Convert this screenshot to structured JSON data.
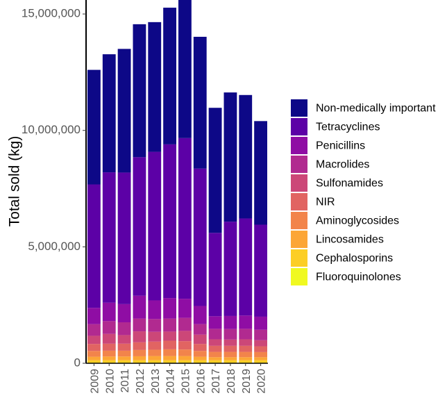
{
  "chart_data": {
    "type": "bar",
    "stacked": true,
    "title": "",
    "xlabel": "",
    "ylabel": "Total sold (kg)",
    "ylim": [
      0,
      15600000
    ],
    "grid": false,
    "legend_position": "right",
    "categories": [
      "2009",
      "2010",
      "2011",
      "2012",
      "2013",
      "2014",
      "2015",
      "2016",
      "2017",
      "2018",
      "2019",
      "2020"
    ],
    "y_ticks": [
      {
        "value": 0,
        "label": "0"
      },
      {
        "value": 5000000,
        "label": "5,000,000"
      },
      {
        "value": 10000000,
        "label": "10,000,000"
      },
      {
        "value": 15000000,
        "label": "15,000,000"
      }
    ],
    "series": [
      {
        "name": "Fluoroquinolones",
        "color": "#f0f921",
        "values": [
          30000,
          30000,
          30000,
          30000,
          30000,
          30000,
          30000,
          30000,
          30000,
          30000,
          30000,
          30000
        ]
      },
      {
        "name": "Cephalosporins",
        "color": "#fcce25",
        "values": [
          100000,
          100000,
          100000,
          100000,
          100000,
          100000,
          100000,
          100000,
          100000,
          100000,
          100000,
          100000
        ]
      },
      {
        "name": "Lincosamides",
        "color": "#fca636",
        "values": [
          150000,
          160000,
          160000,
          170000,
          180000,
          180000,
          180000,
          150000,
          130000,
          130000,
          130000,
          130000
        ]
      },
      {
        "name": "Aminoglycosides",
        "color": "#f2844b",
        "values": [
          250000,
          250000,
          250000,
          270000,
          270000,
          290000,
          280000,
          250000,
          230000,
          230000,
          230000,
          220000
        ]
      },
      {
        "name": "NIR",
        "color": "#e16462",
        "values": [
          300000,
          300000,
          300000,
          330000,
          350000,
          370000,
          360000,
          300000,
          260000,
          260000,
          260000,
          250000
        ]
      },
      {
        "name": "Sulfonamides",
        "color": "#cc4778",
        "values": [
          350000,
          420000,
          370000,
          470000,
          420000,
          390000,
          440000,
          400000,
          280000,
          270000,
          280000,
          260000
        ]
      },
      {
        "name": "Macrolides",
        "color": "#b12a90",
        "values": [
          500000,
          550000,
          550000,
          550000,
          550000,
          560000,
          560000,
          450000,
          450000,
          450000,
          450000,
          450000
        ]
      },
      {
        "name": "Penicillins",
        "color": "#8f0da4",
        "values": [
          700000,
          790000,
          780000,
          980000,
          800000,
          880000,
          820000,
          780000,
          540000,
          560000,
          570000,
          560000
        ]
      },
      {
        "name": "Tetracyclines",
        "color": "#5c01a6",
        "values": [
          5300000,
          5600000,
          5650000,
          5950000,
          6380000,
          6600000,
          6900000,
          5900000,
          3580000,
          4050000,
          4170000,
          3950000
        ]
      },
      {
        "name": "Non-medically important",
        "color": "#0d0887",
        "values": [
          4920000,
          5070000,
          5310000,
          5710000,
          5570000,
          5870000,
          5980000,
          5660000,
          5370000,
          5550000,
          5300000,
          4450000
        ]
      }
    ],
    "legend_order": [
      "Non-medically important",
      "Tetracyclines",
      "Penicillins",
      "Macrolides",
      "Sulfonamides",
      "NIR",
      "Aminoglycosides",
      "Lincosamides",
      "Cephalosporins",
      "Fluoroquinolones"
    ]
  }
}
